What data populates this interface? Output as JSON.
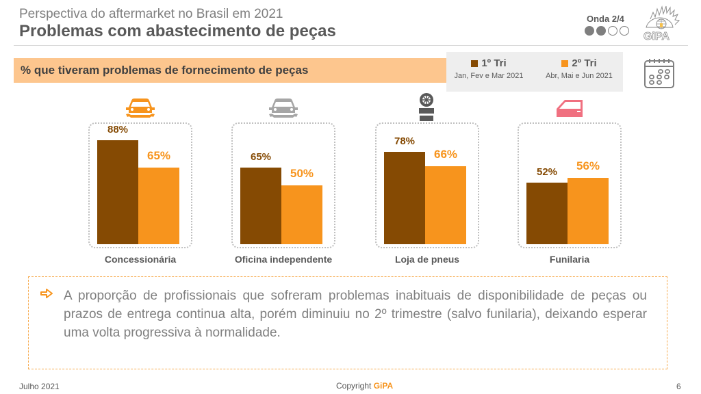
{
  "header": {
    "subtitle": "Perspectiva do aftermarket no Brasil em 2021",
    "title": "Problemas com abastecimento de peças",
    "wave_label": "Onda 2/4",
    "wave_current": 2,
    "wave_total": 4,
    "logo_text": "GiPA"
  },
  "banner": {
    "text": "% que tiveram problemas de fornecimento de peças"
  },
  "legend": [
    {
      "label": "1º Tri",
      "period": "Jan, Fev e Mar 2021",
      "color": "#854a03"
    },
    {
      "label": "2º Tri",
      "period": "Abr, Mai e Jun 2021",
      "color": "#f7941d"
    }
  ],
  "icons": {
    "calendar": "calendar-icon",
    "categories": [
      "car-wrench-icon",
      "car-wrench-icon",
      "tire-stack-icon",
      "car-door-icon"
    ],
    "category_icon_colors": [
      "#f7941d",
      "#a6a6a6",
      "#595959",
      "#f07080"
    ]
  },
  "chart_data": {
    "type": "bar",
    "title": "% que tiveram problemas de fornecimento de peças",
    "categories": [
      "Concessionária",
      "Oficina independente",
      "Loja de pneus",
      "Funilaria"
    ],
    "series": [
      {
        "name": "1º Tri",
        "values": [
          88,
          65,
          78,
          52
        ],
        "labels": [
          "88%",
          "65%",
          "78%",
          "52%"
        ],
        "color": "#854a03"
      },
      {
        "name": "2º Tri",
        "values": [
          65,
          50,
          66,
          56
        ],
        "labels": [
          "65%",
          "50%",
          "66%",
          "56%"
        ],
        "color": "#f7941d"
      }
    ],
    "ylim": [
      0,
      100
    ],
    "xlabel": "",
    "ylabel": "",
    "grid": false,
    "legend_position": "top-right"
  },
  "note": {
    "text": "A proporção de profissionais que sofreram problemas inabituais de disponibilidade de peças ou prazos de entrega continua alta, porém diminuiu no 2º trimestre (salvo funilaria), deixando esperar uma volta progressiva à normalidade."
  },
  "footer": {
    "date": "Julho 2021",
    "copyright_prefix": "Copyright ",
    "copyright_brand": "GiPA",
    "page_number": "6"
  }
}
